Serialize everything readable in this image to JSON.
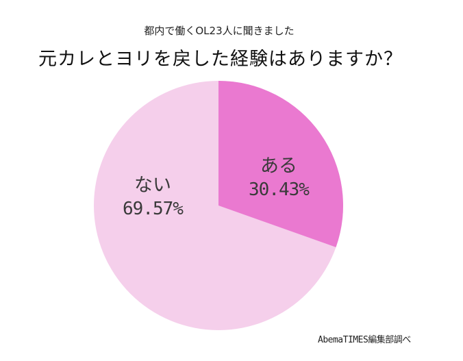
{
  "header": {
    "subtitle": "都内で働くOL23人に聞きました",
    "title": "元カレとヨリを戻した経験はありますか？"
  },
  "slices": [
    {
      "label": "ある",
      "percent_text": "30.43%",
      "value": 30.43,
      "color": "#ea79d0"
    },
    {
      "label": "ない",
      "percent_text": "69.57%",
      "value": 69.57,
      "color": "#f5cfeb"
    }
  ],
  "footer": {
    "source": "AbemaTIMES編集部調べ"
  },
  "chart_data": {
    "type": "pie",
    "title": "元カレとヨリを戻した経験はありますか？",
    "subtitle": "都内で働くOL23人に聞きました",
    "categories": [
      "ある",
      "ない"
    ],
    "values": [
      30.43,
      69.57
    ],
    "colors": [
      "#ea79d0",
      "#f5cfeb"
    ],
    "data_labels": [
      "ある 30.43%",
      "ない 69.57%"
    ],
    "start_angle": "12 o'clock, clockwise",
    "legend": "none (inline labels)",
    "annotation": "AbemaTIMES編集部調べ"
  }
}
